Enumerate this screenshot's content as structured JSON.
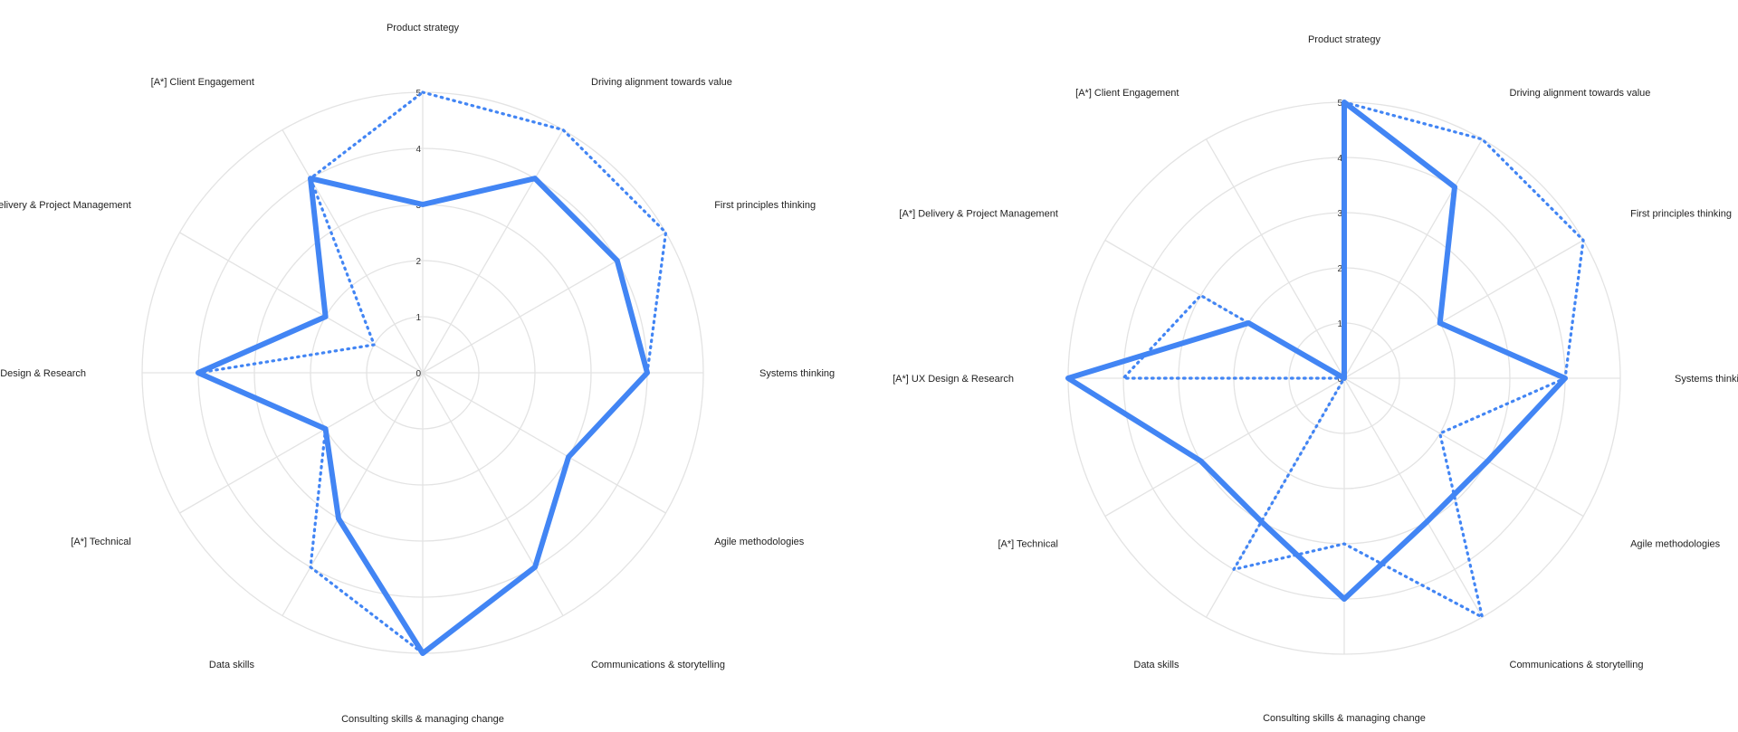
{
  "colors": {
    "series": "#4285f4",
    "grid": "#e3e3e3"
  },
  "chart_data": [
    {
      "type": "radar",
      "axes": [
        "Product strategy",
        "Driving alignment towards value",
        "First principles thinking",
        "Systems thinking",
        "Agile methodologies",
        "Communications & storytelling",
        "Consulting skills & managing change",
        "Data skills",
        "[A*] Technical",
        "[A*] UX Design & Research",
        "[A*] Delivery & Project Management",
        "[A*] Client Engagement"
      ],
      "rlim": [
        0,
        5
      ],
      "ticks": [
        "0",
        "1",
        "2",
        "3",
        "4",
        "5"
      ],
      "grid": true,
      "series": [
        {
          "style": "dotted",
          "values": [
            5,
            5,
            5,
            4,
            3,
            4,
            5,
            4,
            2,
            4,
            1,
            4
          ]
        },
        {
          "style": "solid",
          "values": [
            3,
            4,
            4,
            4,
            3,
            4,
            5,
            3,
            2,
            4,
            2,
            4
          ]
        }
      ]
    },
    {
      "type": "radar",
      "axes": [
        "Product strategy",
        "Driving alignment towards value",
        "First principles thinking",
        "Systems thinking",
        "Agile methodologies",
        "Communications & storytelling",
        "Consulting skills & managing change",
        "Data skills",
        "[A*] Technical",
        "[A*] UX Design & Research",
        "[A*] Delivery & Project Management",
        "[A*] Client Engagement"
      ],
      "rlim": [
        0,
        5
      ],
      "ticks": [
        "0",
        "1",
        "2",
        "3",
        "4",
        "5"
      ],
      "grid": true,
      "series": [
        {
          "style": "dotted",
          "values": [
            5,
            5,
            5,
            4,
            2,
            5,
            3,
            4,
            0,
            4,
            3,
            0
          ]
        },
        {
          "style": "solid",
          "values": [
            5,
            4,
            2,
            4,
            3,
            3,
            4,
            3,
            3,
            5,
            2,
            0
          ]
        }
      ]
    }
  ]
}
